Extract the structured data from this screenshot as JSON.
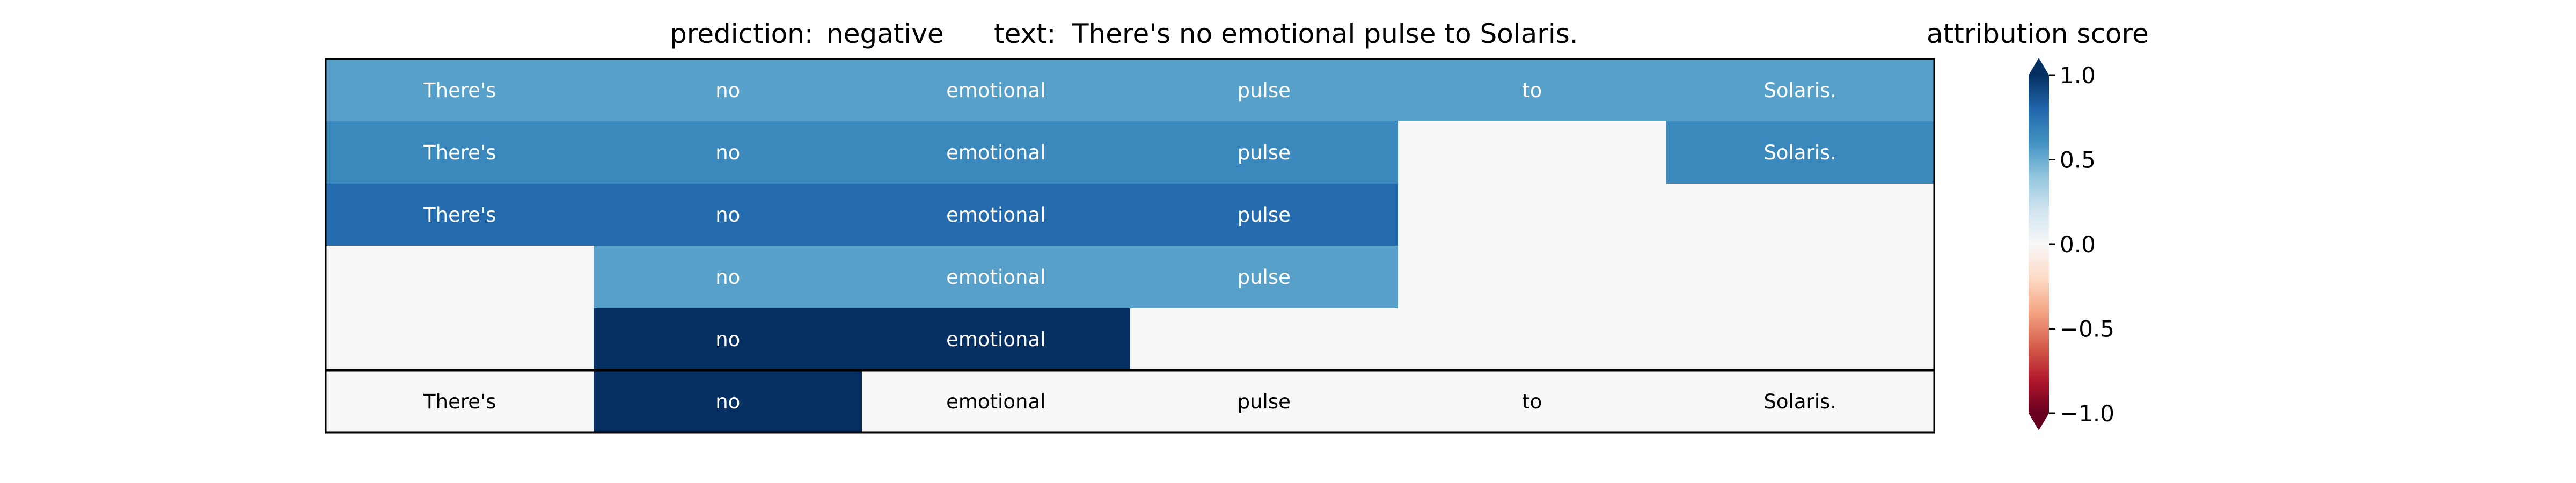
{
  "header": {
    "prediction_label": "prediction:",
    "prediction_value": "negative",
    "text_label": "text:",
    "text_value": "There's no emotional pulse to Solaris."
  },
  "chart_data": {
    "type": "heatmap",
    "tokens": [
      "There's",
      "no",
      "emotional",
      "pulse",
      "to",
      "Solaris."
    ],
    "rows": [
      [
        0.55,
        0.55,
        0.55,
        0.55,
        0.55,
        0.55
      ],
      [
        0.65,
        0.65,
        0.65,
        0.65,
        null,
        0.65
      ],
      [
        0.78,
        0.78,
        0.78,
        0.78,
        null,
        null
      ],
      [
        null,
        0.55,
        0.55,
        0.55,
        null,
        null
      ],
      [
        null,
        1.0,
        1.0,
        null,
        null,
        null
      ]
    ],
    "summary_row": [
      0.0,
      1.0,
      0.0,
      0.0,
      0.0,
      0.0
    ],
    "colorbar": {
      "label": "attribution score",
      "range": [
        -1.0,
        1.0
      ],
      "ticks": [
        {
          "value": 1.0,
          "label": "1.0"
        },
        {
          "value": 0.5,
          "label": "0.5"
        },
        {
          "value": 0.0,
          "label": "0.0"
        },
        {
          "value": -0.5,
          "label": "−0.5"
        },
        {
          "value": -1.0,
          "label": "−1.0"
        }
      ],
      "colormap": "RdBu"
    }
  }
}
